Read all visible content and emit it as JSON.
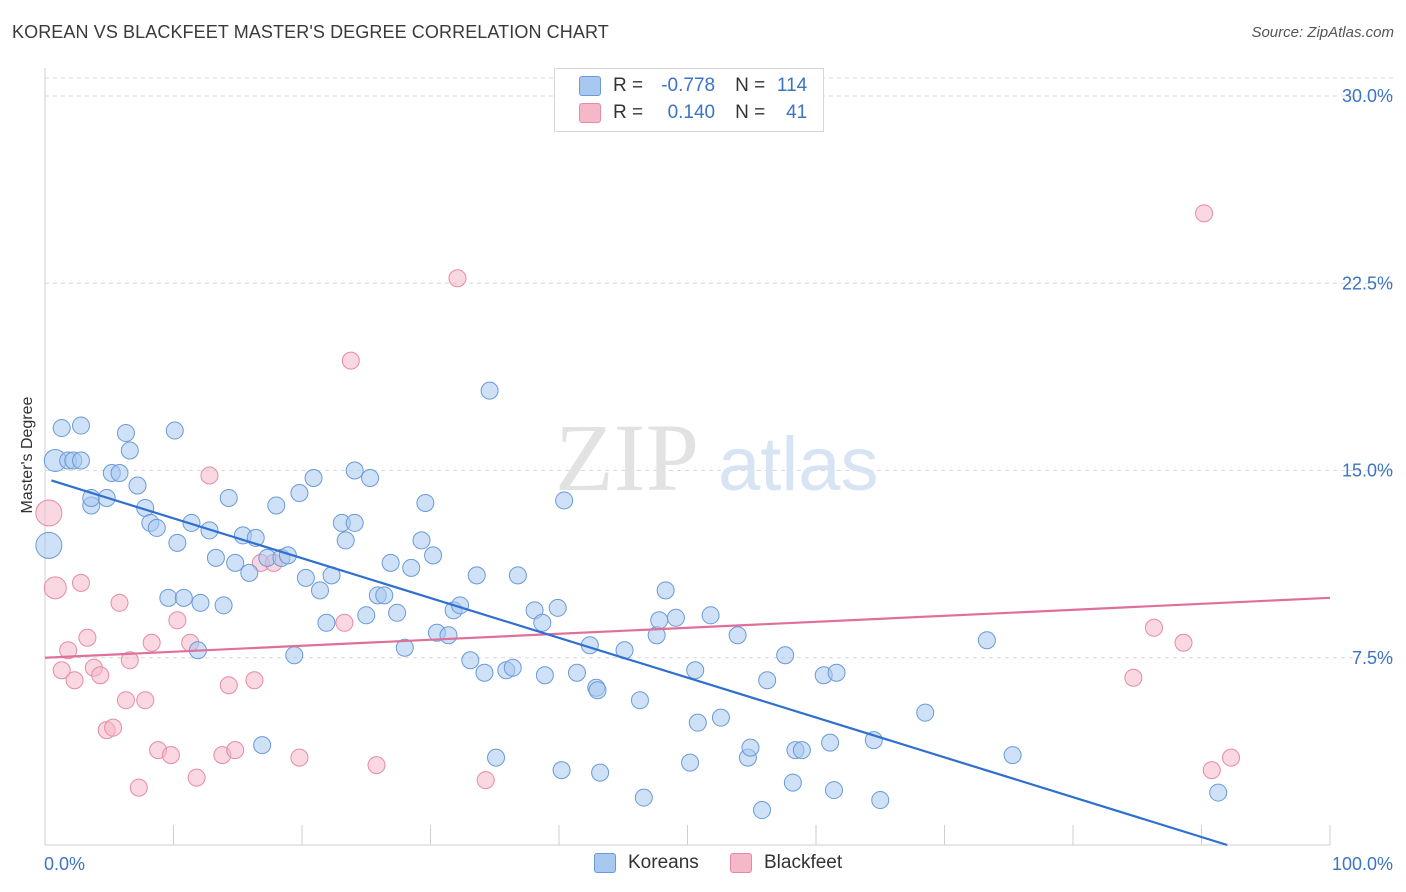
{
  "header": {
    "title": "KOREAN VS BLACKFEET MASTER'S DEGREE CORRELATION CHART",
    "source": "Source: ZipAtlas.com"
  },
  "watermark": {
    "zip": "ZIP",
    "atlas": "atlas"
  },
  "legend": {
    "rows": [
      {
        "r_label": "R =",
        "r_value": "-0.778",
        "n_label": "N =",
        "n_value": "114",
        "color": "#a8c8f0"
      },
      {
        "r_label": "R =",
        "r_value": "0.140",
        "n_label": "N =",
        "n_value": "41",
        "color": "#f5b8c8"
      }
    ]
  },
  "bottom_legend": {
    "koreans": "Koreans",
    "blackfeet": "Blackfeet"
  },
  "colors": {
    "blue_fill": "#a8c8f0",
    "blue_stroke": "#6a9ad8",
    "blue_line": "#2f6fcf",
    "pink_fill": "#f5b8c8",
    "pink_stroke": "#e78aa6",
    "pink_line": "#e0709a",
    "tick_label": "#3b74c4",
    "grid": "#d9d9d9"
  },
  "chart_data": {
    "type": "scatter",
    "title": "KOREAN VS BLACKFEET MASTER'S DEGREE CORRELATION CHART",
    "xlabel": "",
    "ylabel": "Master's Degree",
    "xlim": [
      0,
      100
    ],
    "ylim": [
      0,
      30
    ],
    "x_tick_labels": [
      "0.0%",
      "100.0%"
    ],
    "y_ticks": [
      7.5,
      15.0,
      22.5,
      30.0
    ],
    "y_tick_labels": [
      "7.5%",
      "15.0%",
      "22.5%",
      "30.0%"
    ],
    "grid": "horizontal dashed",
    "series": [
      {
        "name": "Koreans",
        "r": -0.778,
        "n": 114,
        "trend": {
          "x": [
            0.5,
            92.0
          ],
          "y": [
            14.6,
            0.0
          ]
        },
        "points": [
          [
            0.3,
            12.0
          ],
          [
            0.8,
            15.4
          ],
          [
            1.3,
            16.7
          ],
          [
            1.8,
            15.4
          ],
          [
            2.2,
            15.4
          ],
          [
            2.8,
            16.8
          ],
          [
            2.8,
            15.4
          ],
          [
            3.6,
            13.6
          ],
          [
            3.6,
            13.9
          ],
          [
            4.8,
            13.9
          ],
          [
            5.2,
            14.9
          ],
          [
            5.8,
            14.9
          ],
          [
            6.3,
            16.5
          ],
          [
            6.6,
            15.8
          ],
          [
            7.2,
            14.4
          ],
          [
            7.8,
            13.5
          ],
          [
            8.2,
            12.9
          ],
          [
            8.7,
            12.7
          ],
          [
            9.6,
            9.9
          ],
          [
            10.1,
            16.6
          ],
          [
            10.3,
            12.1
          ],
          [
            10.8,
            9.9
          ],
          [
            11.4,
            12.9
          ],
          [
            11.9,
            7.8
          ],
          [
            12.1,
            9.7
          ],
          [
            12.8,
            12.6
          ],
          [
            13.3,
            11.5
          ],
          [
            13.9,
            9.6
          ],
          [
            14.3,
            13.9
          ],
          [
            14.8,
            11.3
          ],
          [
            15.4,
            12.4
          ],
          [
            15.9,
            10.9
          ],
          [
            16.4,
            12.3
          ],
          [
            16.9,
            4.0
          ],
          [
            17.3,
            11.5
          ],
          [
            18.0,
            13.6
          ],
          [
            18.4,
            11.5
          ],
          [
            18.9,
            11.6
          ],
          [
            19.4,
            7.6
          ],
          [
            19.8,
            14.1
          ],
          [
            20.3,
            10.7
          ],
          [
            20.9,
            14.7
          ],
          [
            21.4,
            10.2
          ],
          [
            21.9,
            8.9
          ],
          [
            22.3,
            10.8
          ],
          [
            23.1,
            12.9
          ],
          [
            23.4,
            12.2
          ],
          [
            24.1,
            12.9
          ],
          [
            24.1,
            15.0
          ],
          [
            25.0,
            9.2
          ],
          [
            25.3,
            14.7
          ],
          [
            25.9,
            10.0
          ],
          [
            26.4,
            10.0
          ],
          [
            26.9,
            11.3
          ],
          [
            27.4,
            9.3
          ],
          [
            28.0,
            7.9
          ],
          [
            28.5,
            11.1
          ],
          [
            29.3,
            12.2
          ],
          [
            29.6,
            13.7
          ],
          [
            30.2,
            11.6
          ],
          [
            30.5,
            8.5
          ],
          [
            31.4,
            8.4
          ],
          [
            31.8,
            9.4
          ],
          [
            32.3,
            9.6
          ],
          [
            33.1,
            7.4
          ],
          [
            33.6,
            10.8
          ],
          [
            34.2,
            6.9
          ],
          [
            34.6,
            18.2
          ],
          [
            35.1,
            3.5
          ],
          [
            35.9,
            7.0
          ],
          [
            36.4,
            7.1
          ],
          [
            36.8,
            10.8
          ],
          [
            38.1,
            9.4
          ],
          [
            38.7,
            8.9
          ],
          [
            38.9,
            6.8
          ],
          [
            39.9,
            9.5
          ],
          [
            40.2,
            3.0
          ],
          [
            40.4,
            13.8
          ],
          [
            41.4,
            6.9
          ],
          [
            42.4,
            8.0
          ],
          [
            42.9,
            6.3
          ],
          [
            43.2,
            2.9
          ],
          [
            45.1,
            7.8
          ],
          [
            46.3,
            5.8
          ],
          [
            46.6,
            1.9
          ],
          [
            47.6,
            8.4
          ],
          [
            47.8,
            9.0
          ],
          [
            48.3,
            10.2
          ],
          [
            49.1,
            9.1
          ],
          [
            50.2,
            3.3
          ],
          [
            50.6,
            7.0
          ],
          [
            50.8,
            4.9
          ],
          [
            51.8,
            9.2
          ],
          [
            52.6,
            5.1
          ],
          [
            53.9,
            8.4
          ],
          [
            54.7,
            3.5
          ],
          [
            54.9,
            3.9
          ],
          [
            55.8,
            1.4
          ],
          [
            56.2,
            6.6
          ],
          [
            57.6,
            7.6
          ],
          [
            58.2,
            2.5
          ],
          [
            58.4,
            3.8
          ],
          [
            58.9,
            3.8
          ],
          [
            60.6,
            6.8
          ],
          [
            61.1,
            4.1
          ],
          [
            61.4,
            2.2
          ],
          [
            61.6,
            6.9
          ],
          [
            64.5,
            4.2
          ],
          [
            68.5,
            5.3
          ],
          [
            73.3,
            8.2
          ],
          [
            75.3,
            3.6
          ],
          [
            91.3,
            2.1
          ],
          [
            65.0,
            1.8
          ],
          [
            43.0,
            6.2
          ]
        ]
      },
      {
        "name": "Blackfeet",
        "r": 0.14,
        "n": 41,
        "trend": {
          "x": [
            0.0,
            100.0
          ],
          "y": [
            7.5,
            9.9
          ]
        },
        "points": [
          [
            0.3,
            13.3
          ],
          [
            0.8,
            10.3
          ],
          [
            1.3,
            7.0
          ],
          [
            1.8,
            7.8
          ],
          [
            2.3,
            6.6
          ],
          [
            2.8,
            10.5
          ],
          [
            3.3,
            8.3
          ],
          [
            3.8,
            7.1
          ],
          [
            4.3,
            6.8
          ],
          [
            4.8,
            4.6
          ],
          [
            5.3,
            4.7
          ],
          [
            5.8,
            9.7
          ],
          [
            6.3,
            5.8
          ],
          [
            6.6,
            7.4
          ],
          [
            7.3,
            2.3
          ],
          [
            7.8,
            5.8
          ],
          [
            8.3,
            8.1
          ],
          [
            8.8,
            3.8
          ],
          [
            9.8,
            3.6
          ],
          [
            10.3,
            9.0
          ],
          [
            11.3,
            8.1
          ],
          [
            11.8,
            2.7
          ],
          [
            12.8,
            14.8
          ],
          [
            13.8,
            3.6
          ],
          [
            14.3,
            6.4
          ],
          [
            14.8,
            3.8
          ],
          [
            16.3,
            6.6
          ],
          [
            16.8,
            11.3
          ],
          [
            17.8,
            11.3
          ],
          [
            19.8,
            3.5
          ],
          [
            23.3,
            8.9
          ],
          [
            23.8,
            19.4
          ],
          [
            25.8,
            3.2
          ],
          [
            32.1,
            22.7
          ],
          [
            34.3,
            2.6
          ],
          [
            84.7,
            6.7
          ],
          [
            86.3,
            8.7
          ],
          [
            88.6,
            8.1
          ],
          [
            90.2,
            25.3
          ],
          [
            90.8,
            3.0
          ],
          [
            92.3,
            3.5
          ]
        ]
      }
    ]
  }
}
